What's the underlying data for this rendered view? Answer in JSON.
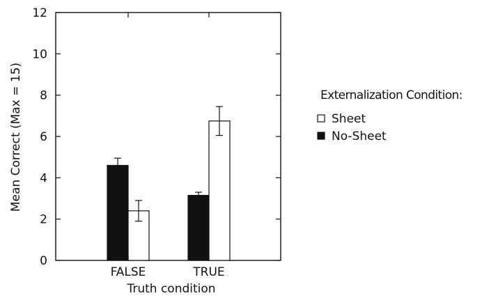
{
  "chart_data": {
    "type": "bar",
    "title": "",
    "xlabel": "Truth condition",
    "ylabel": "Mean Correct (Max = 15)",
    "categories": [
      "FALSE",
      "TRUE"
    ],
    "ylim": [
      0,
      12
    ],
    "yticks": [
      "0",
      "2",
      "4",
      "6",
      "8",
      "10",
      "12"
    ],
    "grid": false,
    "legend_position": "right",
    "legend_title": "Externalization Condition:",
    "series": [
      {
        "name": "Sheet",
        "fill": "#ffffff",
        "values": [
          2.4,
          6.75
        ],
        "error": [
          0.5,
          0.7
        ]
      },
      {
        "name": "No-Sheet",
        "fill": "#111111",
        "values": [
          4.6,
          3.15
        ],
        "error": [
          0.35,
          0.15
        ]
      }
    ],
    "bar_order": [
      "No-Sheet",
      "Sheet"
    ]
  }
}
